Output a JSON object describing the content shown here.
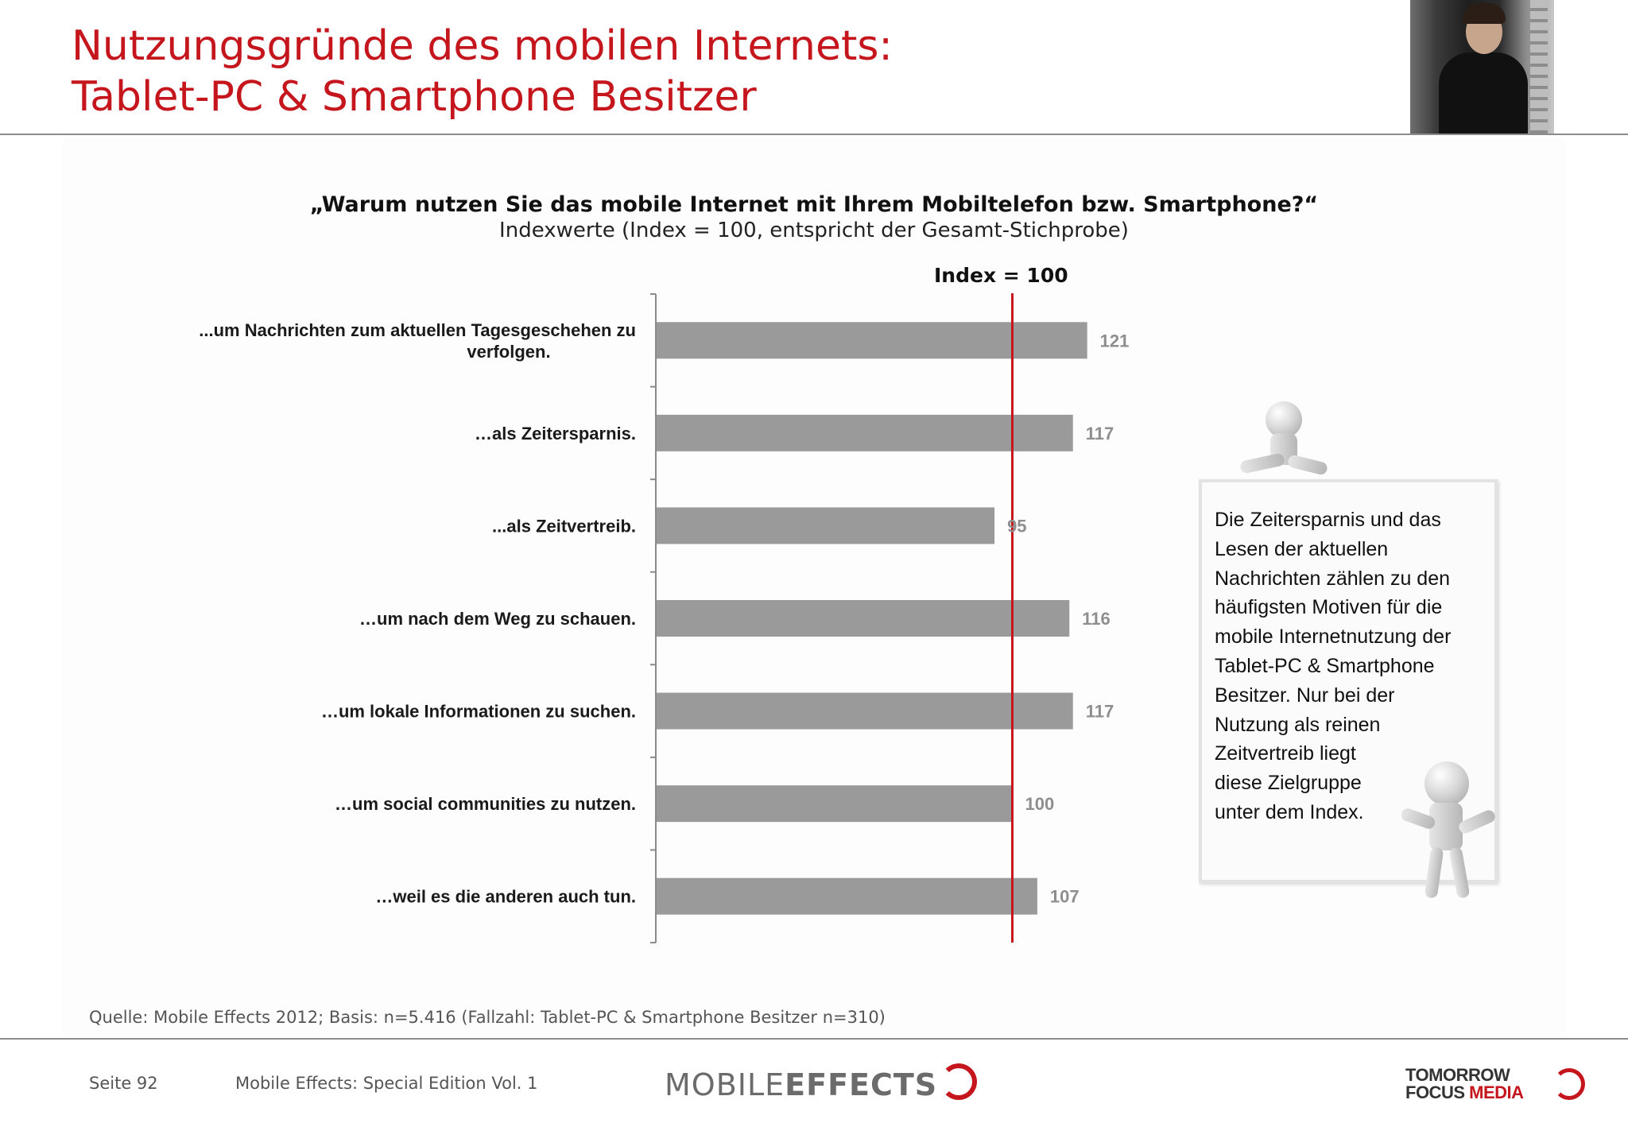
{
  "title_lines": [
    "Nutzungsgründe des mobilen Internets:",
    "Tablet-PC & Smartphone Besitzer"
  ],
  "chart_data": {
    "type": "bar",
    "orientation": "horizontal",
    "title": "„Warum nutzen Sie das mobile Internet mit Ihrem Mobiltelefon bzw. Smartphone?“",
    "subtitle": "Indexwerte (Index = 100, entspricht der Gesamt-Stichprobe)",
    "reference_line": {
      "value": 100,
      "label": "Index = 100",
      "color": "#c4161c"
    },
    "categories": [
      "...um Nachrichten zum aktuellen Tagesgeschehen zu verfolgen.",
      "…als Zeitersparnis.",
      "...als Zeitvertreib.",
      "…um nach dem Weg zu schauen.",
      "…um lokale Informationen zu suchen.",
      "…um social communities zu nutzen.",
      "…weil es die anderen auch tun."
    ],
    "values": [
      121,
      117,
      95,
      116,
      117,
      100,
      107
    ],
    "bar_color": "#9a9a9a",
    "value_label_color": "#8e8e8e",
    "grid": false
  },
  "note": {
    "text_lines": [
      "Die Zeitersparnis und das",
      "Lesen der aktuellen",
      "Nachrichten zählen zu den",
      "häufigsten Motiven für die",
      "mobile Internetnutzung der",
      "Tablet-PC & Smartphone",
      "Besitzer. Nur bei der",
      "Nutzung als reinen",
      "Zeitvertreib liegt",
      "diese Zielgruppe",
      "unter dem Index."
    ]
  },
  "source": "Quelle: Mobile Effects 2012; Basis: n=5.416 (Fallzahl: Tablet-PC & Smartphone Besitzer n=310)",
  "footer": {
    "page": "Seite 92",
    "publication": "Mobile Effects: Special Edition Vol. 1",
    "logo_left_a": "MOBILE",
    "logo_left_b": "EFFECTS",
    "logo_right_line1": "TOMORROW",
    "logo_right_line2a": "FOCUS ",
    "logo_right_line2b": "MEDIA"
  },
  "colors": {
    "accent": "#c4161c",
    "bar": "#9a9a9a",
    "rule": "#8c8c8c"
  }
}
